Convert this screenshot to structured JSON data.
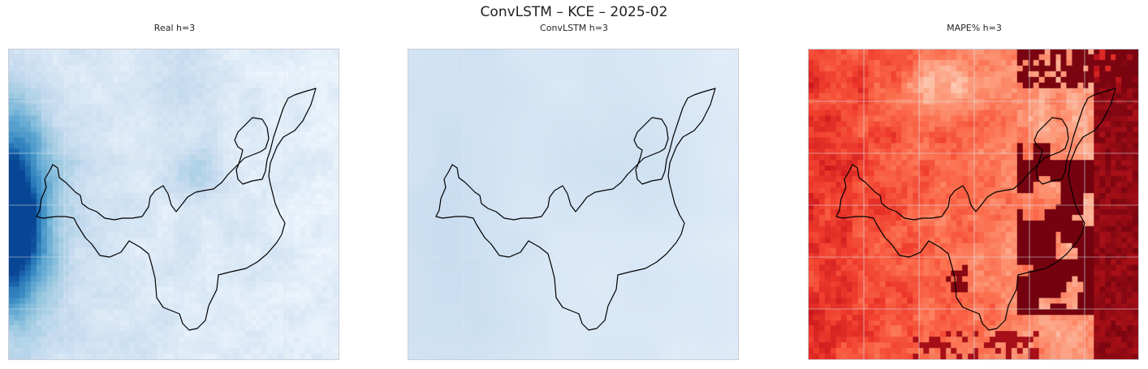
{
  "figure": {
    "suptitle": "ConvLSTM – KCE – 2025-02"
  },
  "panels": [
    {
      "title": "Real h=3",
      "colormap": "Blues"
    },
    {
      "title": "ConvLSTM h=3",
      "colormap": "Blues"
    },
    {
      "title": "MAPE% h=3",
      "colormap": "Reds"
    }
  ],
  "chart_data": {
    "type": "heatmap",
    "title": "ConvLSTM – KCE – 2025-02",
    "subplots": [
      "Real h=3",
      "ConvLSTM h=3",
      "MAPE% h=3"
    ],
    "colormaps": [
      "Blues",
      "Blues",
      "Reds"
    ],
    "grid": true,
    "colors": {
      "outline": "#000000",
      "frame": "#c9ced8",
      "gridline": "#dde4ee"
    }
  }
}
